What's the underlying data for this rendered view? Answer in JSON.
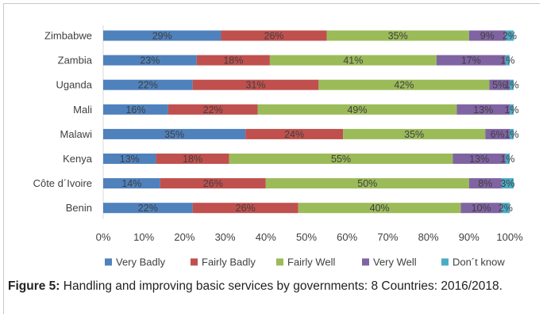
{
  "chart_data": {
    "type": "bar",
    "orientation": "horizontal",
    "stacked": true,
    "categories": [
      "Zimbabwe",
      "Zambia",
      "Uganda",
      "Mali",
      "Malawi",
      "Kenya",
      "Côte d´Ivoire",
      "Benin"
    ],
    "series": [
      {
        "name": "Very Badly",
        "color": "#4f81bd",
        "values": [
          29,
          23,
          22,
          16,
          35,
          13,
          14,
          22
        ],
        "labels": [
          "29%",
          "23%",
          "22%",
          "16%",
          "35%",
          "13%",
          "14%",
          "22%"
        ]
      },
      {
        "name": "Fairly Badly",
        "color": "#c0504d",
        "values": [
          26,
          18,
          31,
          22,
          24,
          18,
          26,
          26
        ],
        "labels": [
          "26%",
          "18%",
          "31%",
          "22%",
          "24%",
          "18%",
          "26%",
          "26%"
        ]
      },
      {
        "name": "Fairly Well",
        "color": "#9bbb59",
        "values": [
          35,
          41,
          42,
          49,
          35,
          55,
          50,
          40
        ],
        "labels": [
          "35%",
          "41%",
          "42%",
          "49%",
          "35%",
          "55%",
          "50%",
          "40%"
        ]
      },
      {
        "name": "Very Well",
        "color": "#8064a2",
        "values": [
          9,
          17,
          5,
          13,
          6,
          13,
          8,
          10
        ],
        "labels": [
          "9%",
          "17%",
          "5%",
          "13%",
          "6%",
          "13%",
          "8%",
          "10%"
        ]
      },
      {
        "name": "Don´t know",
        "color": "#4bacc6",
        "values": [
          2,
          1,
          1,
          1,
          1,
          1,
          3,
          2
        ],
        "labels": [
          "2%",
          "1%",
          "1%",
          "1%",
          "1%",
          "1%",
          "3%",
          "2%"
        ]
      }
    ],
    "xlim": [
      0,
      100
    ],
    "xticks": [
      "0%",
      "10%",
      "20%",
      "30%",
      "40%",
      "50%",
      "60%",
      "70%",
      "80%",
      "90%",
      "100%"
    ],
    "legend_position": "bottom",
    "grid": false
  },
  "caption": {
    "label": "Figure 5:",
    "text": " Handling and improving basic services by governments: 8 Countries: 2016/2018."
  }
}
